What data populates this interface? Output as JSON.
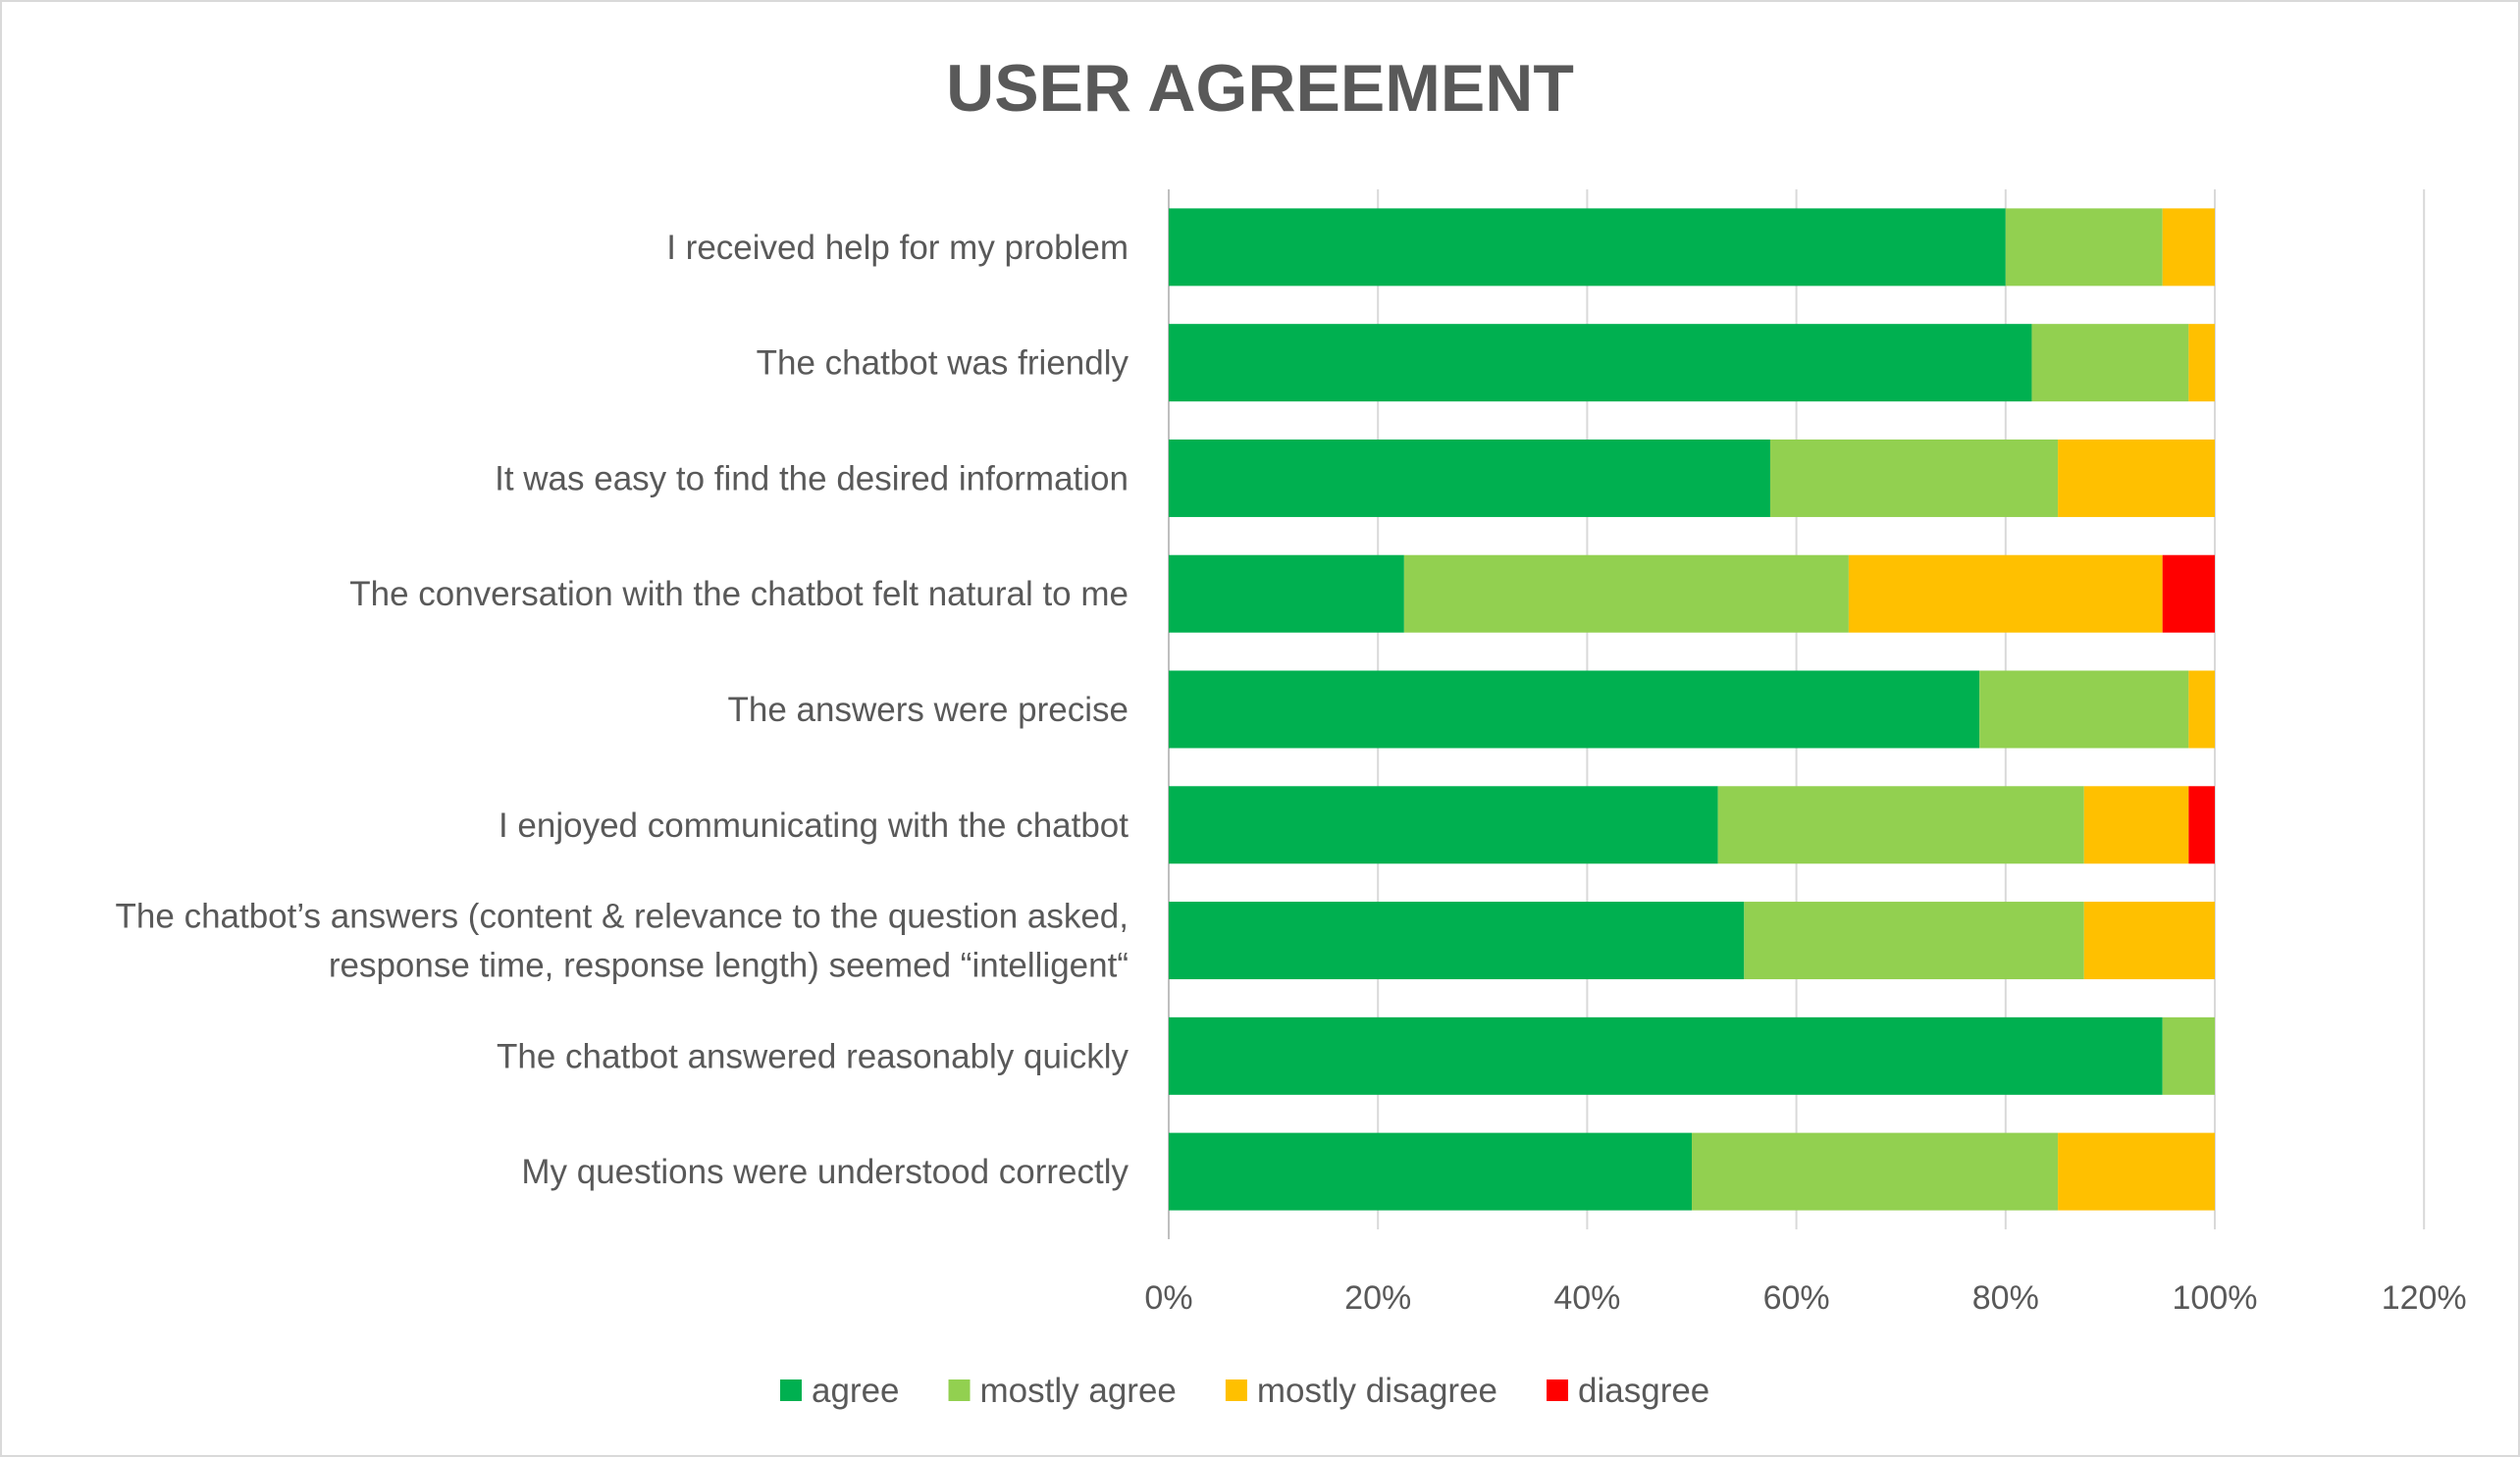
{
  "chart_data": {
    "type": "bar",
    "orientation": "horizontal",
    "stacked": true,
    "title": "USER AGREEMENT",
    "xlabel": "",
    "ylabel": "",
    "xlim": [
      0,
      120
    ],
    "x_ticks": [
      "0%",
      "20%",
      "40%",
      "60%",
      "80%",
      "100%",
      "120%"
    ],
    "grid": true,
    "legend_position": "bottom",
    "categories": [
      [
        "I received help for my problem"
      ],
      [
        "The chatbot was friendly"
      ],
      [
        "It was easy to find the desired information"
      ],
      [
        "The conversation with the chatbot felt natural to me"
      ],
      [
        "The answers were precise"
      ],
      [
        "I enjoyed communicating with the chatbot"
      ],
      [
        "The chatbot’s answers (content & relevance to the question asked,",
        "response time, response length) seemed “intelligent“"
      ],
      [
        "The chatbot answered reasonably quickly"
      ],
      [
        "My questions were understood correctly"
      ]
    ],
    "series": [
      {
        "name": "agree",
        "color": "#00B050",
        "values": [
          80,
          82.5,
          57.5,
          22.5,
          77.5,
          52.5,
          55,
          95,
          50
        ]
      },
      {
        "name": "mostly agree",
        "color": "#92D050",
        "values": [
          15,
          15,
          27.5,
          42.5,
          20,
          35,
          32.5,
          5,
          35
        ]
      },
      {
        "name": "mostly disagree",
        "color": "#FFC000",
        "values": [
          5,
          2.5,
          15,
          30,
          2.5,
          10,
          12.5,
          0,
          15
        ]
      },
      {
        "name": "diasgree",
        "color": "#FF0000",
        "values": [
          0,
          0,
          0,
          5,
          0,
          2.5,
          0,
          0,
          0
        ]
      }
    ]
  }
}
